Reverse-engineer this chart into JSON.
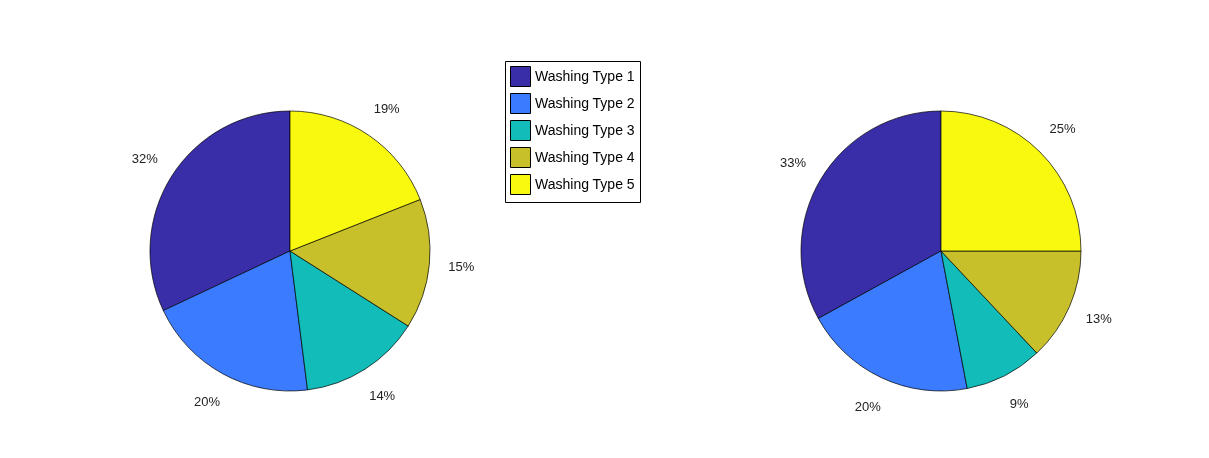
{
  "chart_data": [
    {
      "type": "pie",
      "categories": [
        "Washing Type 1",
        "Washing Type 2",
        "Washing Type 3",
        "Washing Type 4",
        "Washing Type 5"
      ],
      "values": [
        32,
        20,
        14,
        15,
        19
      ],
      "value_labels": [
        "32%",
        "20%",
        "14%",
        "15%",
        "19%"
      ],
      "colors": [
        "#3a2ea8",
        "#3a7bff",
        "#12bdb9",
        "#c7c02a",
        "#f9f90f"
      ],
      "legend": "top"
    },
    {
      "type": "pie",
      "categories": [
        null,
        null,
        null,
        null,
        null
      ],
      "values": [
        33,
        20,
        9,
        13,
        25
      ],
      "value_labels": [
        "33%",
        "20%",
        "9%",
        "13%",
        "25%"
      ],
      "colors": [
        "#3a2ea8",
        "#3a7bff",
        "#12bdb9",
        "#c7c02a",
        "#f9f90f"
      ]
    }
  ]
}
